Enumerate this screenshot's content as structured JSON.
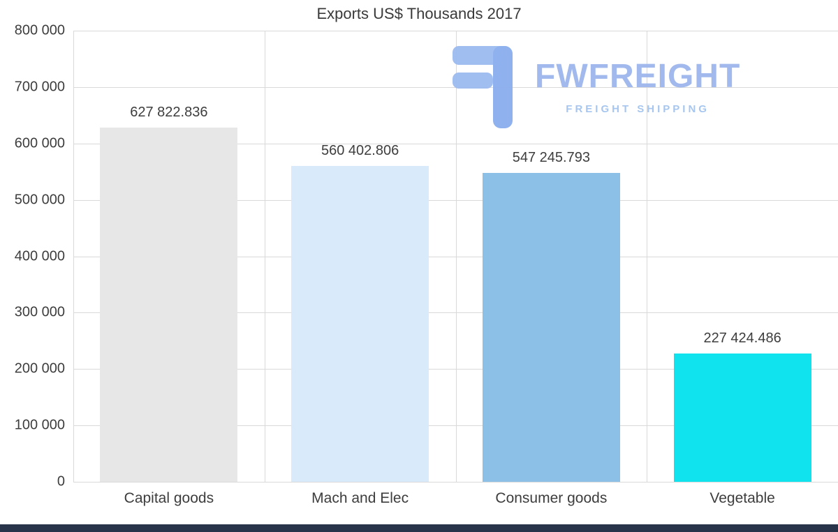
{
  "chart": {
    "title": "Exports US$ Thousands 2017"
  },
  "watermark": {
    "brand": "FWFREIGHT",
    "tagline": "FREIGHT SHIPPING",
    "logo_icon": "fwfreight-f-mark",
    "brand_color": "#9cb6ec",
    "tagline_color": "#a3c4ef"
  },
  "footer": {
    "strip_color": "#273449"
  },
  "chart_data": {
    "type": "bar",
    "title": "Exports US$ Thousands 2017",
    "categories": [
      "Capital goods",
      "Mach and Elec",
      "Consumer goods",
      "Vegetable"
    ],
    "values": [
      627822.836,
      560402.806,
      547245.793,
      227424.486
    ],
    "value_labels": [
      "627 822.836",
      "560 402.806",
      "547 245.793",
      "227 424.486"
    ],
    "bar_colors": [
      "#e7e7e7",
      "#d9eafa",
      "#8cc0e6",
      "#10e2ee"
    ],
    "xlabel": "",
    "ylabel": "",
    "ylim": [
      0,
      800000
    ],
    "y_ticks": [
      800000,
      700000,
      600000,
      500000,
      400000,
      300000,
      200000,
      100000,
      0
    ],
    "y_tick_labels": [
      "800 000",
      "700 000",
      "600 000",
      "500 000",
      "400 000",
      "300 000",
      "200 000",
      "100 000",
      "0"
    ],
    "grid": true,
    "gridline_color": "#d9d9d9",
    "legend": false
  }
}
